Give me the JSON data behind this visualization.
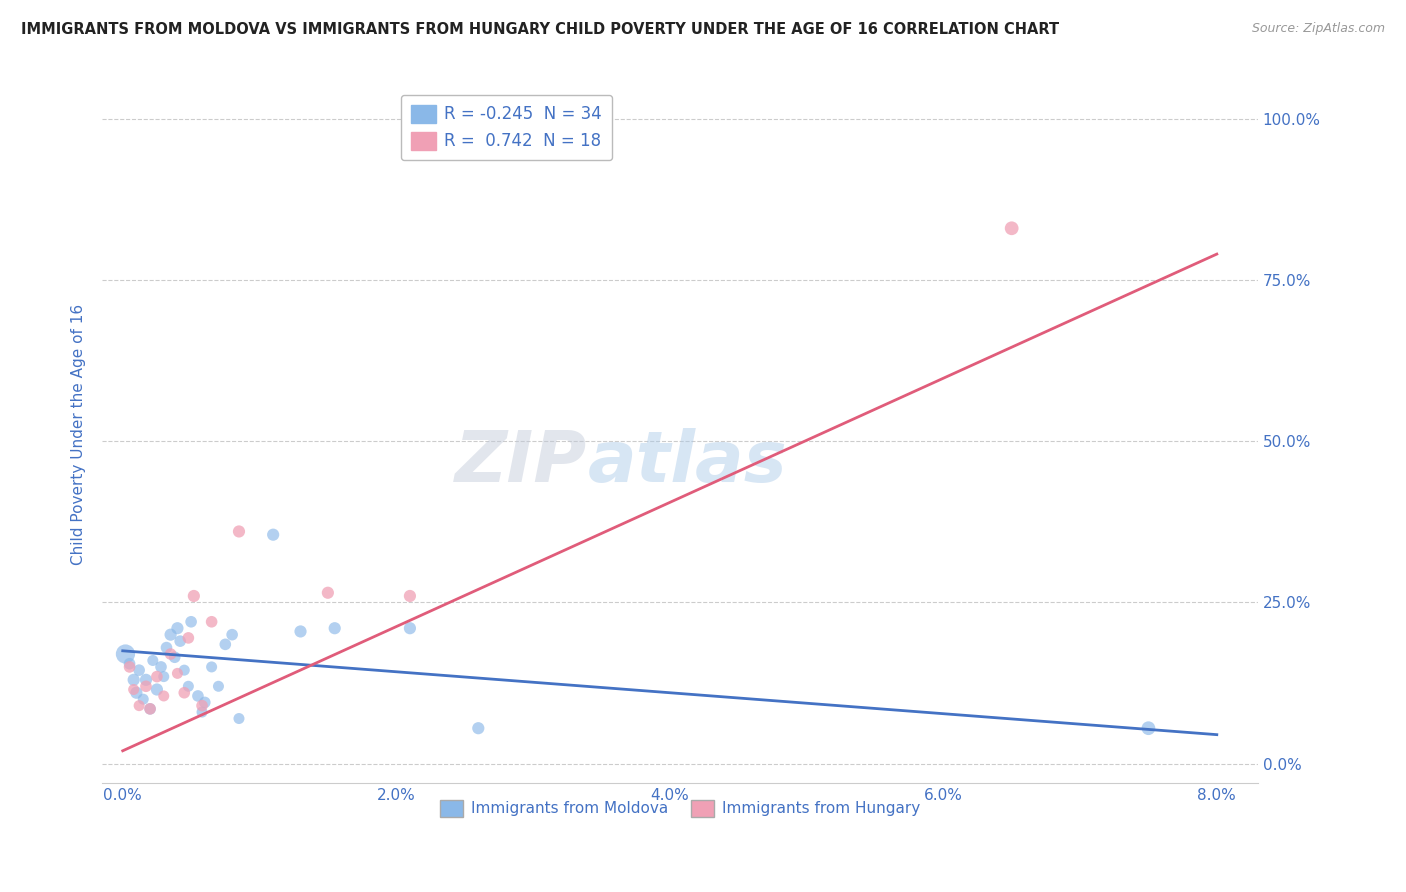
{
  "title": "IMMIGRANTS FROM MOLDOVA VS IMMIGRANTS FROM HUNGARY CHILD POVERTY UNDER THE AGE OF 16 CORRELATION CHART",
  "source": "Source: ZipAtlas.com",
  "ylabel": "Child Poverty Under the Age of 16",
  "xlabel_ticks": [
    "0.0%",
    "2.0%",
    "4.0%",
    "6.0%",
    "8.0%"
  ],
  "xlabel_vals": [
    0.0,
    2.0,
    4.0,
    6.0,
    8.0
  ],
  "ytick_labels": [
    "0.0%",
    "25.0%",
    "50.0%",
    "75.0%",
    "100.0%"
  ],
  "ytick_vals": [
    0.0,
    25.0,
    50.0,
    75.0,
    100.0
  ],
  "xlim": [
    -0.15,
    8.3
  ],
  "ylim": [
    -3.0,
    105.0
  ],
  "moldova_color": "#8ab8e8",
  "hungary_color": "#f0a0b5",
  "moldova_line_color": "#4472c4",
  "hungary_line_color": "#e05c7a",
  "text_color": "#4472c4",
  "legend_border_color": "#bbbbbb",
  "moldova_R": -0.245,
  "moldova_N": 34,
  "hungary_R": 0.742,
  "hungary_N": 18,
  "watermark_text": "ZIPatlas",
  "legend_label_moldova": "Immigrants from Moldova",
  "legend_label_hungary": "Immigrants from Hungary",
  "moldova_points": [
    [
      0.02,
      17.0,
      55
    ],
    [
      0.05,
      15.5,
      20
    ],
    [
      0.08,
      13.0,
      22
    ],
    [
      0.1,
      11.0,
      22
    ],
    [
      0.12,
      14.5,
      20
    ],
    [
      0.15,
      10.0,
      18
    ],
    [
      0.17,
      13.0,
      22
    ],
    [
      0.2,
      8.5,
      20
    ],
    [
      0.22,
      16.0,
      18
    ],
    [
      0.25,
      11.5,
      22
    ],
    [
      0.28,
      15.0,
      20
    ],
    [
      0.3,
      13.5,
      18
    ],
    [
      0.32,
      18.0,
      20
    ],
    [
      0.35,
      20.0,
      22
    ],
    [
      0.38,
      16.5,
      20
    ],
    [
      0.4,
      21.0,
      22
    ],
    [
      0.42,
      19.0,
      20
    ],
    [
      0.45,
      14.5,
      18
    ],
    [
      0.48,
      12.0,
      18
    ],
    [
      0.5,
      22.0,
      20
    ],
    [
      0.55,
      10.5,
      20
    ],
    [
      0.58,
      8.0,
      18
    ],
    [
      0.6,
      9.5,
      20
    ],
    [
      0.65,
      15.0,
      18
    ],
    [
      0.7,
      12.0,
      18
    ],
    [
      0.75,
      18.5,
      20
    ],
    [
      0.8,
      20.0,
      20
    ],
    [
      0.85,
      7.0,
      18
    ],
    [
      1.1,
      35.5,
      22
    ],
    [
      1.3,
      20.5,
      22
    ],
    [
      1.55,
      21.0,
      22
    ],
    [
      2.1,
      21.0,
      22
    ],
    [
      2.6,
      5.5,
      22
    ],
    [
      7.5,
      5.5,
      28
    ]
  ],
  "hungary_points": [
    [
      0.05,
      15.0,
      20
    ],
    [
      0.08,
      11.5,
      18
    ],
    [
      0.12,
      9.0,
      18
    ],
    [
      0.17,
      12.0,
      20
    ],
    [
      0.2,
      8.5,
      20
    ],
    [
      0.25,
      13.5,
      20
    ],
    [
      0.3,
      10.5,
      18
    ],
    [
      0.35,
      17.0,
      20
    ],
    [
      0.4,
      14.0,
      18
    ],
    [
      0.45,
      11.0,
      20
    ],
    [
      0.48,
      19.5,
      20
    ],
    [
      0.52,
      26.0,
      22
    ],
    [
      0.58,
      9.0,
      20
    ],
    [
      0.65,
      22.0,
      20
    ],
    [
      0.85,
      36.0,
      22
    ],
    [
      1.5,
      26.5,
      22
    ],
    [
      2.1,
      26.0,
      22
    ],
    [
      6.5,
      83.0,
      28
    ]
  ],
  "moldova_trend": [
    0.0,
    8.0
  ],
  "moldova_trend_y": [
    17.5,
    4.5
  ],
  "hungary_trend": [
    0.0,
    8.0
  ],
  "hungary_trend_y": [
    2.0,
    79.0
  ]
}
